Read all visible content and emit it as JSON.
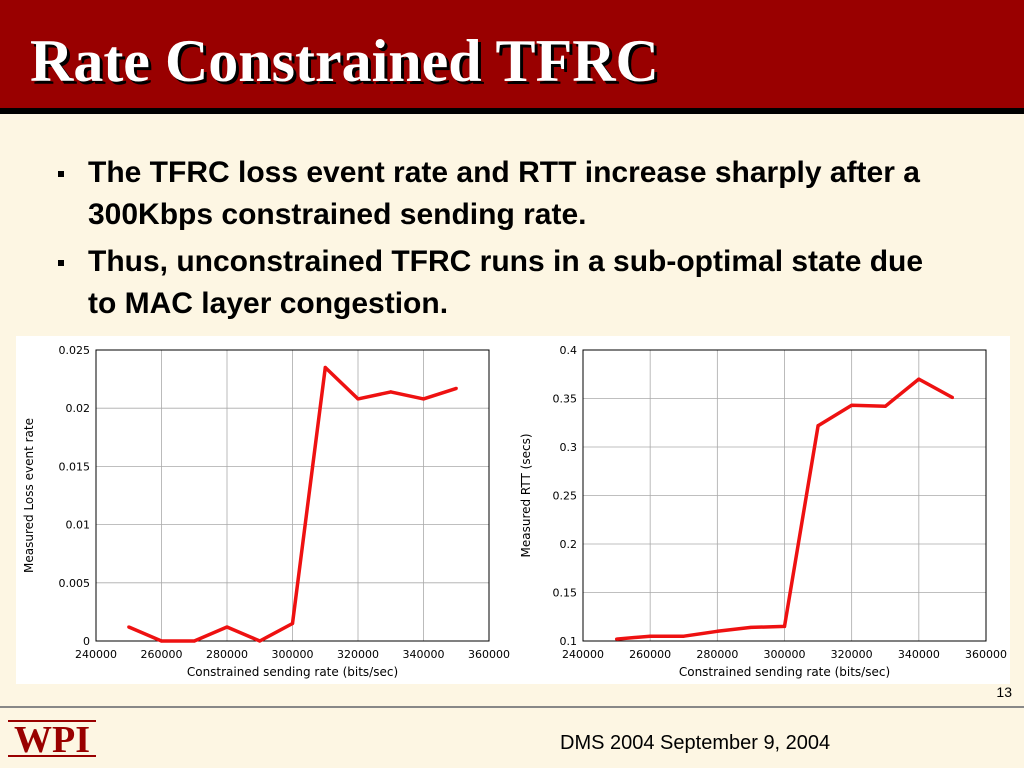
{
  "slide": {
    "title": "Rate Constrained TFRC",
    "bullets": [
      "The TFRC loss event rate and RTT increase sharply after a 300Kbps constrained sending rate.",
      "Thus, unconstrained TFRC runs in a sub-optimal state due to MAC layer congestion."
    ],
    "slide_number": "13",
    "footer_text": "DMS 2004 September 9, 2004",
    "logo_text": "WPI"
  },
  "colors": {
    "header_bg": "#990000",
    "slide_bg": "#fdf6e3",
    "series_line": "#ee1111",
    "grid": "#aaaaaa"
  },
  "chart_data": [
    {
      "type": "line",
      "title": "",
      "xlabel": "Constrained sending rate (bits/sec)",
      "ylabel": "Measured Loss event rate",
      "xlim": [
        240000,
        360000
      ],
      "ylim": [
        0,
        0.025
      ],
      "grid": true,
      "x_ticks": [
        "240000",
        "260000",
        "280000",
        "300000",
        "320000",
        "340000",
        "360000"
      ],
      "y_ticks": [
        "0",
        "0.005",
        "0.01",
        "0.015",
        "0.02",
        "0.025"
      ],
      "series": [
        {
          "x": [
            250000,
            260000,
            270000,
            280000,
            290000,
            300000,
            310000,
            320000,
            330000,
            340000,
            350000
          ],
          "y": [
            0.0012,
            0.0,
            0.0,
            0.0012,
            0.0,
            0.0015,
            0.0235,
            0.0208,
            0.0214,
            0.0208,
            0.0217
          ]
        }
      ]
    },
    {
      "type": "line",
      "title": "",
      "xlabel": "Constrained sending rate (bits/sec)",
      "ylabel": "Measured RTT (secs)",
      "xlim": [
        240000,
        360000
      ],
      "ylim": [
        0.1,
        0.4
      ],
      "grid": true,
      "x_ticks": [
        "240000",
        "260000",
        "280000",
        "300000",
        "320000",
        "340000",
        "360000"
      ],
      "y_ticks": [
        "0.1",
        "0.15",
        "0.2",
        "0.25",
        "0.3",
        "0.35",
        "0.4"
      ],
      "series": [
        {
          "x": [
            250000,
            260000,
            270000,
            280000,
            290000,
            300000,
            310000,
            320000,
            330000,
            340000,
            350000
          ],
          "y": [
            0.102,
            0.105,
            0.105,
            0.11,
            0.114,
            0.115,
            0.322,
            0.343,
            0.342,
            0.37,
            0.351
          ]
        }
      ]
    }
  ]
}
